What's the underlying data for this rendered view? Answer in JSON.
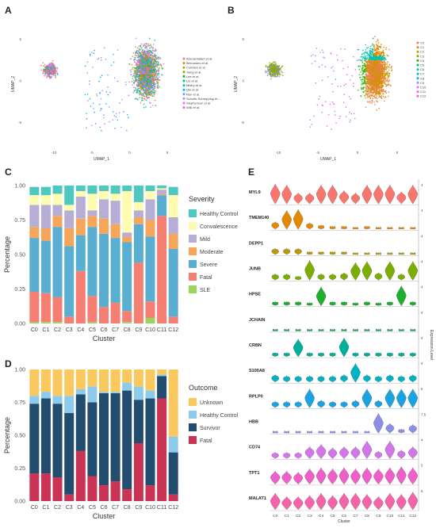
{
  "figure": {
    "panel_letters": [
      "A",
      "B",
      "C",
      "D",
      "E"
    ]
  },
  "umap_a": {
    "xlabel": "UMAP_1",
    "ylabel": "UMAP_2",
    "x_ticks": [
      "-10",
      "-5",
      "0",
      "5"
    ],
    "y_ticks": [
      "5",
      "0",
      "-5"
    ],
    "legend": [
      "Arunachalam et al.",
      "Bernardes et al.",
      "Combes et al.",
      "Jiang et al.",
      "Lee et al.",
      "Liu et al.",
      "Mistry et al.",
      "Qiu et al.",
      "Ren et al.",
      "Schulte-Schrepping et...",
      "Stephenson et al.",
      "Wilk et al."
    ],
    "colors": [
      "#f8766d",
      "#de8c00",
      "#b79f00",
      "#7cae00",
      "#00ba38",
      "#00c08b",
      "#00bfc4",
      "#00b4f0",
      "#619cff",
      "#c77cff",
      "#f564e3",
      "#ff64b0"
    ]
  },
  "umap_b": {
    "xlabel": "UMAP_1",
    "ylabel": "UMAP_2",
    "x_ticks": [
      "-10",
      "-5",
      "0",
      "5"
    ],
    "y_ticks": [
      "5",
      "0",
      "-5"
    ],
    "legend": [
      "C0",
      "C1",
      "C2",
      "C3",
      "C4",
      "C5",
      "C6",
      "C7",
      "C8",
      "C9",
      "C10",
      "C11",
      "C12"
    ],
    "colors": [
      "#f8766d",
      "#e18a00",
      "#be9c00",
      "#8cab00",
      "#24b700",
      "#00be70",
      "#00c1ab",
      "#00bbda",
      "#00acfc",
      "#8b93ff",
      "#d575fe",
      "#f962dd",
      "#ff65ac"
    ]
  },
  "chart_data": [
    {
      "type": "bar",
      "stacked": true,
      "xlabel": "Cluster",
      "ylabel": "Percentage",
      "ylim": [
        0,
        1
      ],
      "y_ticks": [
        "0.00",
        "0.25",
        "0.50",
        "0.75",
        "1.00"
      ],
      "legend_title": "Severity",
      "legend_position": "right",
      "categories": [
        "C0",
        "C1",
        "C2",
        "C3",
        "C4",
        "C5",
        "C6",
        "C7",
        "C8",
        "C9",
        "C10",
        "C11",
        "C12"
      ],
      "series": [
        {
          "name": "Healthy Control",
          "color": "#4fc9c0",
          "values": [
            0.06,
            0.06,
            0.06,
            0.14,
            0.04,
            0.06,
            0.04,
            0.06,
            0.04,
            0.12,
            0.04,
            0.02,
            0.06
          ]
        },
        {
          "name": "Convalescence",
          "color": "#fefcb0",
          "values": [
            0.07,
            0.07,
            0.08,
            0.04,
            0.04,
            0.12,
            0.06,
            0.05,
            0.3,
            0.06,
            0.06,
            0.01,
            0.16
          ]
        },
        {
          "name": "Mild",
          "color": "#b7aed6",
          "values": [
            0.16,
            0.17,
            0.08,
            0.13,
            0.16,
            0.04,
            0.14,
            0.17,
            0.03,
            0.05,
            0.15,
            0.03,
            0.12
          ]
        },
        {
          "name": "Moderate",
          "color": "#f5a65b",
          "values": [
            0.08,
            0.09,
            0.08,
            0.13,
            0.12,
            0.08,
            0.11,
            0.1,
            0.04,
            0.05,
            0.12,
            0.01,
            0.11
          ]
        },
        {
          "name": "Severe",
          "color": "#5aaed1",
          "values": [
            0.39,
            0.38,
            0.51,
            0.51,
            0.26,
            0.5,
            0.53,
            0.47,
            0.5,
            0.28,
            0.47,
            0.15,
            0.49
          ]
        },
        {
          "name": "Fatal",
          "color": "#f47f72",
          "values": [
            0.22,
            0.21,
            0.18,
            0.05,
            0.38,
            0.19,
            0.12,
            0.15,
            0.08,
            0.44,
            0.12,
            0.78,
            0.05
          ]
        },
        {
          "name": "SLE",
          "color": "#9bd45a",
          "values": [
            0.01,
            0.01,
            0.01,
            0.0,
            0.0,
            0.01,
            0.0,
            0.0,
            0.01,
            0.0,
            0.04,
            0.0,
            0.0
          ]
        }
      ]
    },
    {
      "type": "bar",
      "stacked": true,
      "xlabel": "Cluster",
      "ylabel": "Percentage",
      "ylim": [
        0,
        1
      ],
      "y_ticks": [
        "0.00",
        "0.25",
        "0.50",
        "0.75",
        "1.00"
      ],
      "legend_title": "Outcome",
      "legend_position": "right",
      "categories": [
        "C0",
        "C1",
        "C2",
        "C3",
        "C4",
        "C5",
        "C6",
        "C7",
        "C8",
        "C9",
        "C10",
        "C11",
        "C12"
      ],
      "series": [
        {
          "name": "Unknown",
          "color": "#f9c85f",
          "values": [
            0.2,
            0.17,
            0.2,
            0.2,
            0.15,
            0.13,
            0.17,
            0.17,
            0.1,
            0.13,
            0.16,
            0.04,
            0.51
          ]
        },
        {
          "name": "Healthy Control",
          "color": "#8ccbeb",
          "values": [
            0.06,
            0.05,
            0.06,
            0.13,
            0.04,
            0.12,
            0.01,
            0.01,
            0.06,
            0.1,
            0.06,
            0.01,
            0.12
          ]
        },
        {
          "name": "Survivor",
          "color": "#234d6e",
          "values": [
            0.53,
            0.57,
            0.56,
            0.62,
            0.43,
            0.56,
            0.7,
            0.67,
            0.75,
            0.33,
            0.66,
            0.17,
            0.32
          ]
        },
        {
          "name": "Fatal",
          "color": "#c93354",
          "values": [
            0.21,
            0.21,
            0.18,
            0.05,
            0.38,
            0.19,
            0.12,
            0.15,
            0.09,
            0.44,
            0.12,
            0.78,
            0.05
          ]
        }
      ]
    },
    {
      "type": "violin",
      "xlabel": "Cluster",
      "ylabel": "Expression Level",
      "categories": [
        "C0",
        "C1",
        "C2",
        "C3",
        "C4",
        "C5",
        "C6",
        "C7",
        "C8",
        "C9",
        "C10",
        "C11",
        "C12"
      ],
      "genes": [
        "MYL9",
        "TMEM140",
        "DEPP1",
        "JUNB",
        "HPSE",
        "JCHAIN",
        "CRBN",
        "S100A8",
        "RPLP0",
        "HBB",
        "CD74",
        "TPT1",
        "MALAT1"
      ],
      "gene_colors": [
        "#f8766d",
        "#e58700",
        "#b99a00",
        "#7cae00",
        "#1faf2f",
        "#1aa85a",
        "#00b09a",
        "#00b3c3",
        "#1ba2e0",
        "#8c8fe8",
        "#d177e8",
        "#ef5fc9",
        "#f564a8"
      ],
      "tick_max": [
        "4",
        "4",
        "4",
        "4",
        "4",
        "4",
        "4",
        "4",
        "5",
        "7.5",
        "4",
        "5",
        "6"
      ],
      "levels": [
        [
          0.9,
          0.85,
          0.5,
          0.5,
          0.85,
          0.85,
          0.6,
          0.5,
          0.85,
          0.85,
          0.85,
          0.55,
          0.85
        ],
        [
          0.35,
          0.85,
          0.9,
          0.3,
          0.2,
          0.15,
          0.15,
          0.1,
          0.15,
          0.1,
          0.1,
          0.1,
          0.1
        ],
        [
          0.3,
          0.3,
          0.3,
          0.15,
          0.15,
          0.15,
          0.15,
          0.1,
          0.1,
          0.1,
          0.1,
          0.1,
          0.1
        ],
        [
          0.3,
          0.3,
          0.2,
          0.9,
          0.3,
          0.3,
          0.35,
          0.8,
          0.85,
          0.35,
          0.85,
          0.3,
          0.85
        ],
        [
          0.2,
          0.2,
          0.2,
          0.15,
          0.85,
          0.2,
          0.2,
          0.15,
          0.2,
          0.15,
          0.2,
          0.9,
          0.2
        ],
        [
          0.1,
          0.1,
          0.1,
          0.1,
          0.1,
          0.1,
          0.1,
          0.1,
          0.1,
          0.1,
          0.1,
          0.1,
          0.1
        ],
        [
          0.2,
          0.2,
          0.8,
          0.2,
          0.2,
          0.2,
          0.85,
          0.2,
          0.2,
          0.2,
          0.2,
          0.2,
          0.2
        ],
        [
          0.35,
          0.3,
          0.3,
          0.3,
          0.3,
          0.3,
          0.35,
          0.85,
          0.35,
          0.3,
          0.35,
          0.3,
          0.35
        ],
        [
          0.3,
          0.3,
          0.3,
          0.85,
          0.35,
          0.3,
          0.3,
          0.35,
          0.85,
          0.35,
          0.85,
          0.85,
          0.85
        ],
        [
          0.1,
          0.1,
          0.1,
          0.1,
          0.1,
          0.1,
          0.1,
          0.1,
          0.1,
          0.9,
          0.45,
          0.2,
          0.4
        ],
        [
          0.3,
          0.3,
          0.3,
          0.55,
          0.65,
          0.5,
          0.55,
          0.55,
          0.8,
          0.35,
          0.8,
          0.4,
          0.55
        ],
        [
          0.6,
          0.6,
          0.55,
          0.7,
          0.75,
          0.7,
          0.75,
          0.7,
          0.75,
          0.7,
          0.75,
          0.8,
          0.75
        ],
        [
          0.75,
          0.6,
          0.6,
          0.65,
          0.75,
          0.65,
          0.75,
          0.75,
          0.7,
          0.6,
          0.75,
          0.7,
          0.8
        ]
      ]
    }
  ]
}
